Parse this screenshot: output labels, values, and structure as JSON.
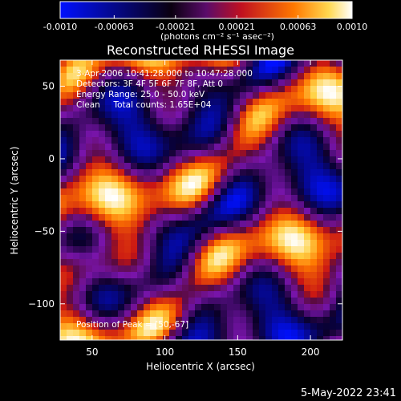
{
  "colorbar": {
    "tick_labels": [
      "-0.0010",
      "-0.00063",
      "-0.00021",
      "0.00021",
      "0.00063",
      "0.0010"
    ],
    "tick_values": [
      -0.001,
      -0.00063,
      -0.00021,
      0.00021,
      0.00063,
      0.001
    ],
    "range": [
      -0.001,
      0.001
    ],
    "units_label": "(photons cm⁻² s⁻¹ asec⁻²)",
    "colors": [
      "#0010ff",
      "#000000",
      "#7a10b0",
      "#e01010",
      "#ff8a00",
      "#ffffff"
    ]
  },
  "chart_data": {
    "type": "heatmap",
    "title": "Reconstructed RHESSI Image",
    "xlabel": "Heliocentric X (arcsec)",
    "ylabel": "Heliocentric Y (arcsec)",
    "xlim": [
      28,
      222
    ],
    "ylim": [
      -125,
      68
    ],
    "x_ticks": [
      50,
      100,
      150,
      200
    ],
    "y_ticks": [
      50,
      0,
      -50,
      -100
    ],
    "x_tick_labels": [
      "50",
      "100",
      "150",
      "200"
    ],
    "y_tick_labels": [
      "50",
      "0",
      "−50",
      "−100"
    ],
    "annotations": [
      "3-Apr-2006 10:41:28.000 to 10:47:28.000",
      "Detectors: 3F 4F 5F 6F 7F 8F, Att 0",
      "Energy Range: 25.0 - 50.0 keV",
      "Clean     Total counts: 1.65E+04",
      "Position of Peak = [50,-67]"
    ],
    "peak_position": [
      50,
      -67
    ],
    "value_range": [
      -0.001,
      0.001
    ]
  },
  "footer": {
    "timestamp": "5-May-2022 23:41"
  }
}
